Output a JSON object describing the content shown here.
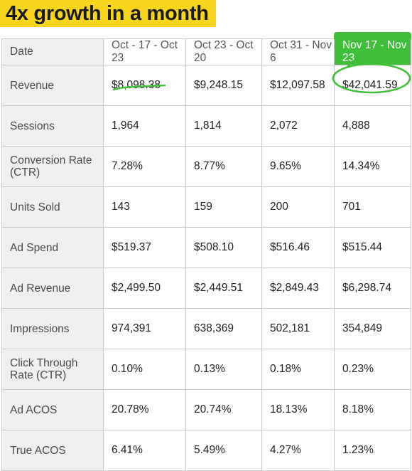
{
  "title": "4x growth in a month",
  "headers": [
    "Date",
    "Oct - 17 - Oct 23",
    "Oct 23 - Oct 20",
    "Oct 31 - Nov 6",
    "Nov 17 - Nov 23"
  ],
  "rows": [
    {
      "label": "Revenue",
      "values": [
        "$8,098.38",
        "$9,248.15",
        "$12,097.58",
        "$42,041.59"
      ]
    },
    {
      "label": "Sessions",
      "values": [
        "1,964",
        "1,814",
        "2,072",
        "4,888"
      ]
    },
    {
      "label": "Conversion Rate (CTR)",
      "values": [
        "7.28%",
        "8.77%",
        "9.65%",
        "14.34%"
      ]
    },
    {
      "label": "Units Sold",
      "values": [
        "143",
        "159",
        "200",
        "701"
      ]
    },
    {
      "label": "Ad Spend",
      "values": [
        "$519.37",
        "$508.10",
        "$516.46",
        "$515.44"
      ]
    },
    {
      "label": "Ad Revenue",
      "values": [
        "$2,499.50",
        "$2,449.51",
        "$2,849.43",
        "$6,298.74"
      ]
    },
    {
      "label": "Impressions",
      "values": [
        "974,391",
        "638,369",
        "502,181",
        "354,849"
      ]
    },
    {
      "label": "Click Through Rate (CTR)",
      "values": [
        "0.10%",
        "0.13%",
        "0.18%",
        "0.23%"
      ]
    },
    {
      "label": "Ad ACOS",
      "values": [
        "20.78%",
        "20.74%",
        "18.13%",
        "8.18%"
      ]
    },
    {
      "label": "True ACOS",
      "values": [
        "6.41%",
        "5.49%",
        "4.27%",
        "1.23%"
      ]
    }
  ],
  "colors": {
    "title_bg": "#f7d51d",
    "highlight": "#3fbf3a",
    "label_bg": "#efefef"
  }
}
